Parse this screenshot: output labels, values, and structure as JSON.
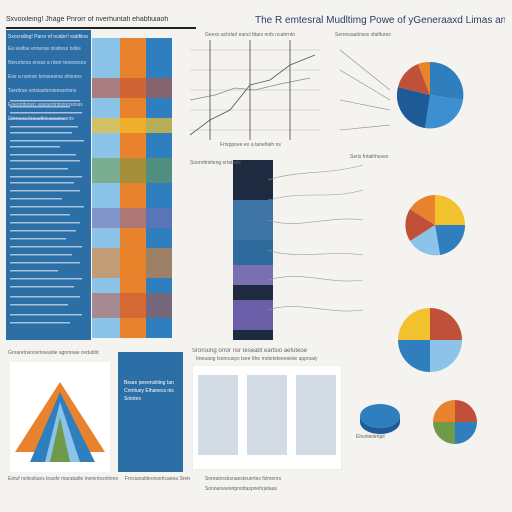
{
  "top_left_title": "Sxvoixleing! Jhage Pnrorr of nverhuntafi ehabfiuiaoh",
  "main_title": "The R emtesral Mudltimg Powe of yGeneraaxd Limas and Mods",
  "left_column": {
    "header": "Sxocndlng! Paror of nvabrr! eabfiinals",
    "text_lines": [
      "Ee iesltse enneras niisitess tsllss",
      "Nnrurtsrss ensss a nisnr tenesnsos",
      "Eisr a nsnnsr tenseesros eltsrsns",
      "Tseritrue ontsiastersieessntsns",
      "Enennttsnen sseoentntsnonsosss",
      "Elrrneea ltrouetlnt ssaonssnts"
    ]
  },
  "center_top_caption": "Geexs achrlarl eancl tttars nnfs ncatrrnto",
  "center_mid_caption": "Frtsppoee eo a tanehieh ns",
  "right_top_label": "Sernnsaatinsss sfaiftures",
  "right_mid_label": "Seris fntaihhuves",
  "right_bottom_label": "Ehsinteiertpil",
  "center_right_label": "Soonrttmiteng ertatrats",
  "bottom_left_header": "Gnraretrwoosmoeadie agnmsae ovdubbt",
  "bottom_center_header": "Sroroung orror nsr Ieseabt eartsio aefuteoe",
  "bottom_center_sub": "Imeuang Isonouays tsee Ithe moteteteeesiete apprsaiy",
  "blue_box_lines": [
    "Beare peeensitiing Ian",
    "Cnmtuey Eihanecs nis",
    "Sntotes"
  ],
  "footers": {
    "f1": "Eetuf nelinstiues leaofe maratadle inenintsxnitrnoe",
    "f2": "Fmxianatiteonsehcaeea Sretesenet",
    "f3": "Snreatnrsbsnaesteuertes fslmenrs",
    "f4": "Sonoarwunetpnottaspnehrjetaas"
  },
  "colors": {
    "blue": "#2f7fbf",
    "light_blue": "#8bc4e8",
    "orange": "#e8822c",
    "yellow": "#f2c22e",
    "red": "#c0503a",
    "green": "#6f9a4a",
    "purple": "#7a6fb0",
    "dark": "#1e2a40"
  },
  "icons": {
    "pies": "pie-chart-icon",
    "bars": "vertical-stripe-chart"
  }
}
